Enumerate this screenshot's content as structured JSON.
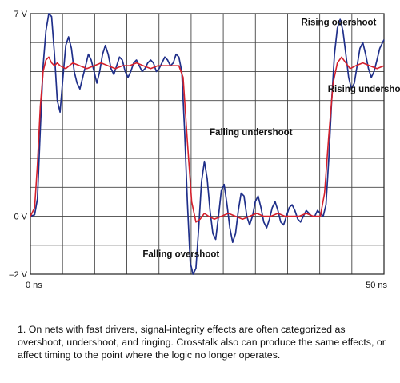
{
  "chart_data": {
    "type": "line",
    "title": "",
    "xlabel": "",
    "ylabel": "",
    "xlim": [
      0,
      50
    ],
    "ylim": [
      -2,
      7
    ],
    "grid": true,
    "x_tick_labels": [
      {
        "value": 0,
        "label": "0 ns"
      },
      {
        "value": 50,
        "label": "50 ns"
      }
    ],
    "y_tick_labels": [
      {
        "value": 7,
        "label": "7 V"
      },
      {
        "value": 0,
        "label": "0 V"
      },
      {
        "value": -2,
        "label": "–2 V"
      }
    ],
    "series": [
      {
        "color": "#1f2f8a",
        "x": [
          0,
          0.6,
          1.0,
          1.4,
          1.8,
          2.2,
          2.6,
          3.0,
          3.4,
          3.8,
          4.2,
          4.6,
          5.0,
          5.4,
          5.8,
          6.2,
          6.6,
          7.0,
          7.4,
          7.8,
          8.2,
          8.6,
          9.0,
          9.4,
          9.8,
          10.2,
          10.6,
          11.0,
          11.4,
          11.8,
          12.2,
          12.6,
          13.0,
          13.4,
          13.8,
          14.2,
          14.6,
          15.0,
          15.4,
          15.8,
          16.2,
          16.6,
          17.0,
          17.4,
          17.8,
          18.2,
          18.6,
          19.0,
          19.4,
          19.8,
          20.2,
          20.6,
          21.0,
          21.4,
          21.8,
          22.2,
          22.6,
          23.0,
          23.4,
          23.8,
          24.2,
          24.6,
          25.0,
          25.4,
          25.8,
          26.2,
          26.6,
          27.0,
          27.4,
          27.8,
          28.2,
          28.6,
          29.0,
          29.4,
          29.8,
          30.2,
          30.6,
          31.0,
          31.4,
          31.8,
          32.2,
          32.6,
          33.0,
          33.4,
          33.8,
          34.2,
          34.6,
          35.0,
          35.4,
          35.8,
          36.2,
          36.6,
          37.0,
          37.4,
          37.8,
          38.2,
          38.6,
          39.0,
          39.4,
          39.8,
          40.2,
          40.6,
          41.0,
          41.4,
          41.8,
          42.2,
          42.6,
          43.0,
          43.4,
          43.8,
          44.2,
          44.6,
          45.0,
          45.4,
          45.8,
          46.2,
          46.6,
          47.0,
          47.4,
          47.8,
          48.2,
          48.6,
          49.0,
          49.4,
          49.8,
          50.0
        ],
        "y": [
          0,
          0.05,
          0.6,
          3.0,
          5.2,
          6.4,
          7.0,
          6.9,
          5.6,
          4.0,
          3.6,
          4.8,
          5.9,
          6.2,
          5.8,
          5.0,
          4.6,
          4.4,
          4.8,
          5.2,
          5.6,
          5.4,
          5.0,
          4.6,
          5.0,
          5.6,
          5.9,
          5.6,
          5.1,
          4.9,
          5.2,
          5.5,
          5.4,
          5.0,
          4.8,
          5.0,
          5.3,
          5.4,
          5.2,
          5.0,
          5.1,
          5.3,
          5.4,
          5.3,
          5.0,
          5.1,
          5.3,
          5.5,
          5.4,
          5.2,
          5.3,
          5.6,
          5.5,
          5.0,
          3.0,
          0.5,
          -1.6,
          -2.0,
          -1.8,
          -0.4,
          1.2,
          1.9,
          1.3,
          0.2,
          -0.6,
          -0.8,
          0.0,
          0.9,
          1.1,
          0.4,
          -0.4,
          -0.9,
          -0.6,
          0.2,
          0.8,
          0.7,
          0.0,
          -0.3,
          0.0,
          0.5,
          0.7,
          0.3,
          -0.2,
          -0.4,
          -0.1,
          0.3,
          0.5,
          0.2,
          -0.2,
          -0.3,
          0.0,
          0.3,
          0.4,
          0.2,
          -0.1,
          -0.2,
          0.0,
          0.2,
          0.1,
          0.0,
          0.0,
          0.2,
          0.1,
          0.0,
          0.4,
          2.0,
          4.0,
          5.6,
          6.5,
          6.8,
          6.4,
          5.6,
          4.8,
          4.4,
          4.6,
          5.2,
          5.8,
          6.0,
          5.6,
          5.1,
          4.8,
          5.0,
          5.4,
          5.8,
          6.0,
          6.1
        ]
      },
      {
        "color": "#d4202c",
        "x": [
          0,
          0.6,
          1.0,
          1.4,
          1.8,
          2.2,
          2.6,
          3.0,
          3.4,
          3.8,
          4.2,
          5.0,
          6.0,
          7.0,
          8.0,
          9.0,
          10.0,
          11.0,
          12.0,
          13.0,
          14.0,
          15.0,
          16.0,
          17.0,
          18.0,
          19.0,
          20.0,
          21.0,
          21.6,
          22.2,
          22.8,
          23.4,
          24.0,
          24.6,
          25.2,
          26.0,
          27.0,
          28.0,
          29.0,
          30.0,
          31.0,
          32.0,
          33.0,
          34.0,
          35.0,
          36.0,
          37.0,
          38.0,
          39.0,
          40.0,
          41.0,
          41.6,
          42.2,
          42.8,
          43.4,
          44.0,
          44.6,
          45.2,
          46.0,
          47.0,
          48.0,
          49.0,
          50.0
        ],
        "y": [
          0,
          0.3,
          1.8,
          3.8,
          5.0,
          5.4,
          5.5,
          5.3,
          5.2,
          5.3,
          5.2,
          5.1,
          5.3,
          5.2,
          5.1,
          5.2,
          5.3,
          5.2,
          5.1,
          5.2,
          5.2,
          5.3,
          5.2,
          5.1,
          5.2,
          5.2,
          5.2,
          5.2,
          4.8,
          2.6,
          0.5,
          -0.2,
          -0.1,
          0.1,
          0.0,
          -0.1,
          0.0,
          0.1,
          0.0,
          -0.1,
          0.0,
          0.1,
          0.0,
          0.0,
          0.1,
          0.0,
          0.0,
          0.0,
          0.1,
          0.0,
          0.0,
          0.8,
          2.8,
          4.6,
          5.3,
          5.5,
          5.3,
          5.1,
          5.2,
          5.3,
          5.2,
          5.1,
          5.2
        ]
      }
    ],
    "annotations": [
      {
        "text": "Rising overshoot",
        "x": 43.6,
        "y": 6.6
      },
      {
        "text": "Rising undershoot",
        "x": 47.8,
        "y": 4.3
      },
      {
        "text": "Falling undershoot",
        "x": 31.2,
        "y": 2.8
      },
      {
        "text": "Falling overshoot",
        "x": 21.3,
        "y": -1.4
      }
    ]
  },
  "caption": "1. On nets with fast drivers, signal-integrity effects are often categorized as overshoot, undershoot, and ringing. Crosstalk also can produce the same effects, or affect timing to the point where the logic no longer operates."
}
